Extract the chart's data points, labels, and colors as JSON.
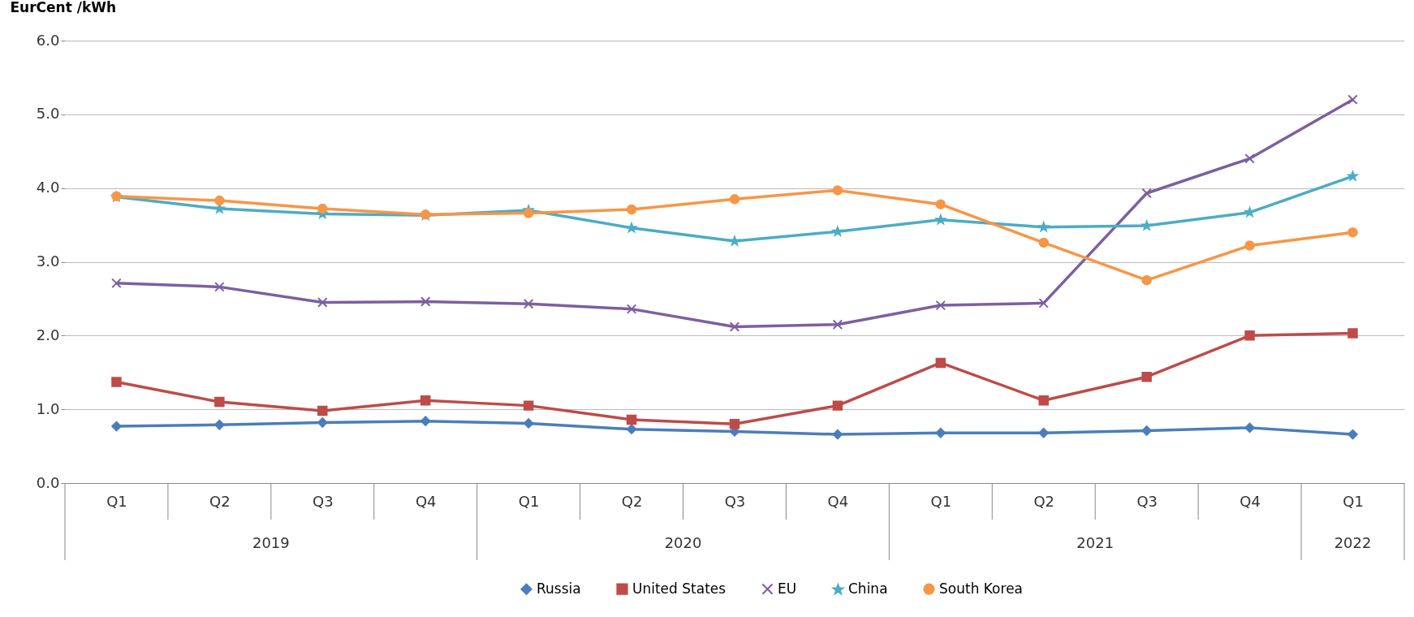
{
  "chart_data": {
    "type": "line",
    "ylabel": "EurCent /kWh",
    "categories": [
      "Q1",
      "Q2",
      "Q3",
      "Q4",
      "Q1",
      "Q2",
      "Q3",
      "Q4",
      "Q1",
      "Q2",
      "Q3",
      "Q4",
      "Q1"
    ],
    "annotations": [
      "2019",
      "2020",
      "2021",
      "2022"
    ],
    "ylim": [
      0,
      6
    ],
    "yticks": [
      {
        "value": 0,
        "label": "0.0"
      },
      {
        "value": 1,
        "label": "1.0"
      },
      {
        "value": 2,
        "label": "2.0"
      },
      {
        "value": 3,
        "label": "3.0"
      },
      {
        "value": 4,
        "label": "4.0"
      },
      {
        "value": 5,
        "label": "5.0"
      },
      {
        "value": 6,
        "label": "6.0"
      }
    ],
    "grid": "y",
    "legend": "bottom",
    "series": [
      {
        "name": "Russia",
        "color": "#4a7ebb",
        "marker": "diamond",
        "values": [
          0.77,
          0.79,
          0.82,
          0.84,
          0.81,
          0.73,
          0.7,
          0.66,
          0.68,
          0.68,
          0.71,
          0.75,
          0.66
        ]
      },
      {
        "name": "United States",
        "color": "#be4b48",
        "marker": "square",
        "values": [
          1.37,
          1.1,
          0.98,
          1.12,
          1.05,
          0.86,
          0.8,
          1.05,
          1.63,
          1.12,
          1.44,
          2.0,
          2.03
        ]
      },
      {
        "name": "EU",
        "color": "#7d5fa0",
        "marker": "cross",
        "values": [
          2.71,
          2.66,
          2.45,
          2.46,
          2.43,
          2.36,
          2.12,
          2.15,
          2.41,
          2.44,
          3.93,
          4.4,
          5.2
        ]
      },
      {
        "name": "China",
        "color": "#4bacc6",
        "marker": "star",
        "values": [
          3.88,
          3.72,
          3.65,
          3.63,
          3.7,
          3.46,
          3.28,
          3.41,
          3.57,
          3.47,
          3.49,
          3.67,
          4.16
        ]
      },
      {
        "name": "South Korea",
        "color": "#f79646",
        "marker": "circle",
        "values": [
          3.89,
          3.83,
          3.72,
          3.64,
          3.66,
          3.71,
          3.85,
          3.97,
          3.78,
          3.26,
          2.75,
          3.22,
          3.4
        ]
      }
    ]
  }
}
